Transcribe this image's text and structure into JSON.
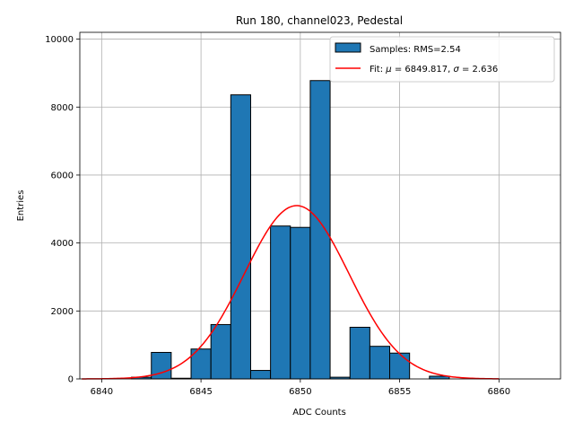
{
  "chart_data": {
    "type": "bar",
    "title": "Run 180, channel023, Pedestal",
    "xlabel": "ADC Counts",
    "ylabel": "Entries",
    "xlim": [
      6838.9,
      6863.1
    ],
    "ylim": [
      0,
      10200
    ],
    "xticks": [
      6840,
      6845,
      6850,
      6855,
      6860
    ],
    "yticks": [
      0,
      2000,
      4000,
      6000,
      8000,
      10000
    ],
    "grid": true,
    "bin_width": 1,
    "bins": [
      {
        "x": 6839,
        "count": 0
      },
      {
        "x": 6840,
        "count": 0
      },
      {
        "x": 6841,
        "count": 0
      },
      {
        "x": 6842,
        "count": 50
      },
      {
        "x": 6843,
        "count": 780
      },
      {
        "x": 6844,
        "count": 20
      },
      {
        "x": 6845,
        "count": 880
      },
      {
        "x": 6846,
        "count": 1600
      },
      {
        "x": 6847,
        "count": 8360
      },
      {
        "x": 6848,
        "count": 250
      },
      {
        "x": 6849,
        "count": 4500
      },
      {
        "x": 6850,
        "count": 4460
      },
      {
        "x": 6851,
        "count": 8780
      },
      {
        "x": 6852,
        "count": 50
      },
      {
        "x": 6853,
        "count": 1520
      },
      {
        "x": 6854,
        "count": 960
      },
      {
        "x": 6855,
        "count": 760
      },
      {
        "x": 6856,
        "count": 0
      },
      {
        "x": 6857,
        "count": 80
      },
      {
        "x": 6858,
        "count": 0
      },
      {
        "x": 6859,
        "count": 0
      },
      {
        "x": 6860,
        "count": 0
      },
      {
        "x": 6861,
        "count": 0
      }
    ],
    "fit": {
      "mu": 6849.817,
      "sigma": 2.636,
      "amplitude": 5100,
      "x_range": [
        6839,
        6860
      ]
    },
    "legend": {
      "position": "upper-right",
      "entries": [
        {
          "kind": "patch",
          "label": "Samples: RMS=2.54"
        },
        {
          "kind": "line",
          "prefix": "Fit: ",
          "mu_symbol": "μ",
          "mu_text": " = 6849.817, ",
          "sigma_symbol": "σ",
          "sigma_text": " = 2.636"
        }
      ]
    },
    "colors": {
      "bar_fill": "#1f77b4",
      "bar_edge": "#000000",
      "fit_line": "#ff0000",
      "grid": "#b0b0b0"
    }
  }
}
